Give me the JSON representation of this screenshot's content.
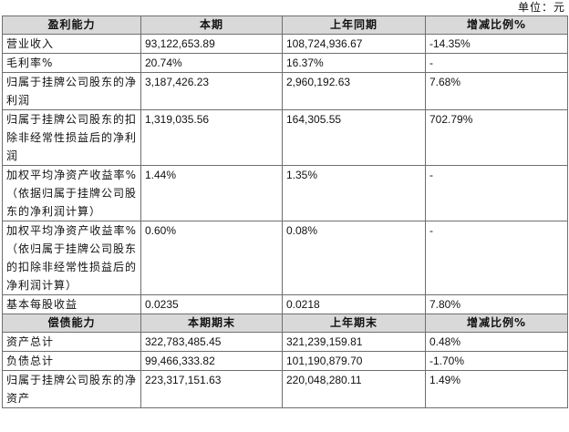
{
  "unit_label": "单位：元",
  "profit_header": [
    "盈利能力",
    "本期",
    "上年同期",
    "增减比例%"
  ],
  "profit_rows": [
    {
      "label": "营业收入",
      "current": "93,122,653.89",
      "previous": "108,724,936.67",
      "change": "-14.35%"
    },
    {
      "label": "毛利率%",
      "current": "20.74%",
      "previous": "16.37%",
      "change": "-"
    },
    {
      "label": "归属于挂牌公司股东的净利润",
      "current": "3,187,426.23",
      "previous": "2,960,192.63",
      "change": "7.68%"
    },
    {
      "label": "归属于挂牌公司股东的扣除非经常性损益后的净利润",
      "current": "1,319,035.56",
      "previous": "164,305.55",
      "change": "702.79%"
    },
    {
      "label": "加权平均净资产收益率%（依据归属于挂牌公司股东的净利润计算）",
      "current": "1.44%",
      "previous": "1.35%",
      "change": "-"
    },
    {
      "label": "加权平均净资产收益率%（依归属于挂牌公司股东的扣除非经常性损益后的净利润计算）",
      "current": "0.60%",
      "previous": "0.08%",
      "change": "-"
    },
    {
      "label": "基本每股收益",
      "current": "0.0235",
      "previous": "0.0218",
      "change": "7.80%"
    }
  ],
  "solvency_header": [
    "偿债能力",
    "本期期末",
    "上年期末",
    "增减比例%"
  ],
  "solvency_rows": [
    {
      "label": "资产总计",
      "current": "322,783,485.45",
      "previous": "321,239,159.81",
      "change": "0.48%"
    },
    {
      "label": "负债总计",
      "current": "99,466,333.82",
      "previous": "101,190,879.70",
      "change": "-1.70%"
    },
    {
      "label": "归属于挂牌公司股东的净资产",
      "current": "223,317,151.63",
      "previous": "220,048,280.11",
      "change": "1.49%"
    }
  ]
}
